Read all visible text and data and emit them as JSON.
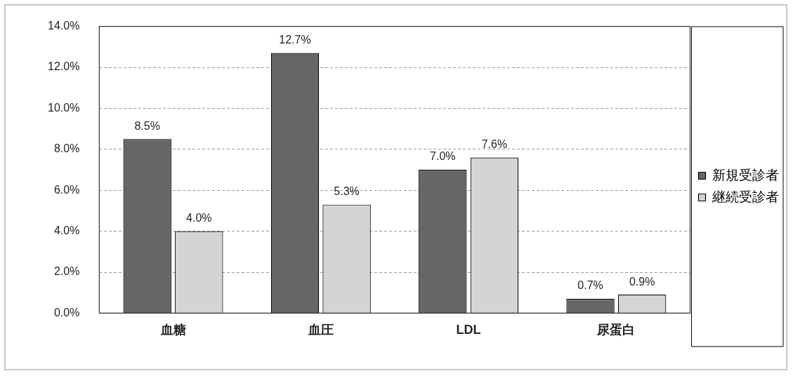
{
  "chart_data": {
    "type": "bar",
    "categories": [
      "血糖",
      "血圧",
      "LDL",
      "尿蛋白"
    ],
    "series": [
      {
        "name": "新規受診者",
        "color": "#666666",
        "values": [
          8.5,
          12.7,
          7.0,
          0.7
        ],
        "value_labels": [
          "8.5%",
          "12.7%",
          "7.0%",
          "0.7%"
        ]
      },
      {
        "name": "継続受診者",
        "color": "#d4d4d4",
        "values": [
          4.0,
          5.3,
          7.6,
          0.9
        ],
        "value_labels": [
          "4.0%",
          "5.3%",
          "7.6%",
          "0.9%"
        ]
      }
    ],
    "ylim": [
      0,
      14
    ],
    "yticks": [
      {
        "value": 0,
        "label": "0.0%"
      },
      {
        "value": 2,
        "label": "2.0%"
      },
      {
        "value": 4,
        "label": "4.0%"
      },
      {
        "value": 6,
        "label": "6.0%"
      },
      {
        "value": 8,
        "label": "8.0%"
      },
      {
        "value": 10,
        "label": "10.0%"
      },
      {
        "value": 12,
        "label": "12.0%"
      },
      {
        "value": 14,
        "label": "14.0%"
      }
    ],
    "grid": "y",
    "legend": "right"
  }
}
